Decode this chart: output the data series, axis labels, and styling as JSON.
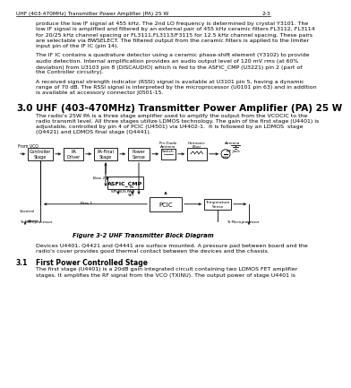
{
  "page_bg": "#ffffff",
  "header_text": "UHF (403-470MHz) Transmitter Power Amplifier (PA) 25 W",
  "header_right": "2-3",
  "para1_lines": [
    "produce the low IF signal at 455 kHz. The 2nd LO frequency is determined by crystal Y3101. The",
    "low IF signal is amplified and filtered by an external pair of 455 kHz ceramic filters FL3112, FL3114",
    "for 20/25 kHz channel spacing or FL3111,FL3113/F3115 for 12.5 kHz channel spacing. These pairs",
    "are selectable via BWSELECT. The filtered output from the ceramic filters is applied to the limiter",
    "input pin of the IF IC (pin 14)."
  ],
  "para2_lines": [
    "The IF IC contains a quadrature detector using a ceramic phase-shift element (Y3102) to provide",
    "audio detection. Internal amplification provides an audio output level of 120 mV rms (at 60%",
    "deviation) from U3103 pin 8 (DISCAUDIO) which is fed to the ASFIC_CMP (U3221) pin 2 (part of",
    "the Controller circuitry)."
  ],
  "para3_lines": [
    "A received signal strength indicator (RSSI) signal is available at U3101 pin 5, having a dynamic",
    "range of 70 dB. The RSSI signal is interpreted by the microprocessor (U0101 pin 63) and in addition",
    "is available at accessory connector J0501-15."
  ],
  "section_num": "3.0",
  "section_head": "UHF (403-470MHz) Transmitter Power Amplifier (PA) 25 W",
  "section_body_lines": [
    "The radio's 25W PA is a three stage amplifier used to amplify the output from the VCOCIC to the",
    "radio transmit level. All three stages utilize LDMOS technology. The gain of the first stage (U4401) is",
    "adjustable, controlled by pin 4 of PCIC (U4501) via U4402-1.  It is followed by an LDMOS  stage",
    "(Q4421) and LDMOS final stage (Q4441)."
  ],
  "figure_caption": "Figure 3-2 UHF Transmitter Block Diagram",
  "devices_lines": [
    "Devices U4401, Q4421 and Q4441 are surface mounted. A pressure pad between board and the",
    "radio's cover provides good thermal contact between the devices and the chassis."
  ],
  "sub_num": "3.1",
  "sub_head": "First Power Controlled Stage",
  "sub_body_lines": [
    "The first stage (U4401) is a 20dB gain integrated circuit containing two LDMOS FET amplifier",
    "stages. It amplifies the RF signal from the VCO (TXINU). The output power of stage U4401 is"
  ],
  "text_color": "#000000",
  "line_color": "#000000"
}
